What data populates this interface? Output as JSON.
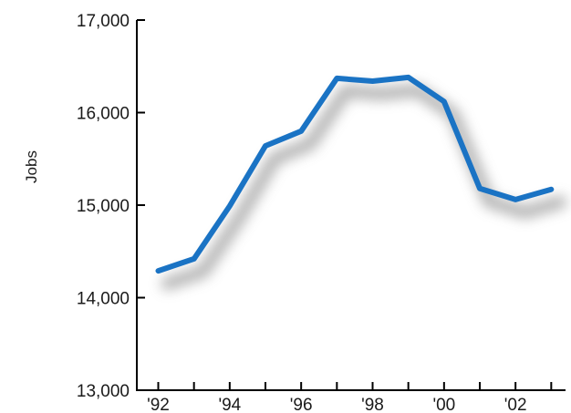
{
  "chart_data": {
    "type": "line",
    "title": "",
    "xlabel": "",
    "ylabel": "Jobs",
    "x": [
      1992,
      1993,
      1994,
      1995,
      1996,
      1997,
      1998,
      1999,
      2000,
      2001,
      2002,
      2003
    ],
    "x_tick_labels": [
      "'92",
      "'94",
      "'96",
      "'98",
      "'00",
      "'02"
    ],
    "series": [
      {
        "values": [
          14290,
          14420,
          14990,
          15640,
          15800,
          16370,
          16340,
          16380,
          16120,
          15180,
          15060,
          15170
        ]
      }
    ],
    "ylim": [
      13000,
      17000
    ],
    "y_ticks": [
      13000,
      14000,
      15000,
      16000,
      17000
    ],
    "y_tick_labels": [
      "13,000",
      "14,000",
      "15,000",
      "16,000",
      "17,000"
    ],
    "line_color": "#1a73c4",
    "shadow_color": "#9a9a9a",
    "grid": false,
    "legend": "none"
  }
}
